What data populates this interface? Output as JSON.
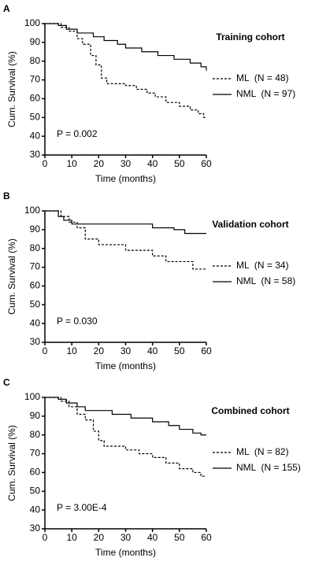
{
  "chart_data": [
    {
      "type": "line",
      "panel": "A",
      "title": "Training cohort",
      "x_label": "Time (months)",
      "y_label": "Cum. Survival (%)",
      "annotation": "P = 0.002",
      "xlim": [
        0,
        60
      ],
      "ylim": [
        30,
        100
      ],
      "xticks": [
        0,
        10,
        20,
        30,
        40,
        50,
        60
      ],
      "yticks": [
        30,
        40,
        50,
        60,
        70,
        80,
        90,
        100
      ],
      "series": [
        {
          "name": "ML  (N = 48)",
          "color": "#000000",
          "line_style": "dashed",
          "x": [
            0,
            6,
            6,
            9,
            9,
            12,
            12,
            14,
            14,
            17,
            17,
            19,
            19,
            21,
            21,
            23,
            23,
            30,
            30,
            34,
            34,
            38,
            38,
            41,
            41,
            45,
            45,
            50,
            50,
            54,
            54,
            57,
            57,
            59,
            59,
            60
          ],
          "values": [
            100,
            100,
            98,
            98,
            96,
            96,
            92,
            92,
            89,
            89,
            83,
            83,
            78,
            78,
            71,
            71,
            68,
            68,
            67,
            67,
            65,
            65,
            63,
            63,
            61,
            61,
            58,
            58,
            56,
            56,
            54,
            54,
            52,
            52,
            50,
            50
          ]
        },
        {
          "name": "NML  (N = 97)",
          "color": "#000000",
          "line_style": "solid",
          "x": [
            0,
            5,
            5,
            8,
            8,
            12,
            12,
            18,
            18,
            22,
            22,
            27,
            27,
            30,
            30,
            36,
            36,
            42,
            42,
            48,
            48,
            54,
            54,
            58,
            58,
            60,
            60
          ],
          "values": [
            100,
            100,
            99,
            99,
            97,
            97,
            95,
            95,
            93,
            93,
            91,
            91,
            89,
            89,
            87,
            87,
            85,
            85,
            83,
            83,
            81,
            81,
            79,
            79,
            77,
            77,
            75
          ]
        }
      ]
    },
    {
      "type": "line",
      "panel": "B",
      "title": "Validation cohort",
      "x_label": "Time (months)",
      "y_label": "Cum. Survival (%)",
      "annotation": "P = 0.030",
      "xlim": [
        0,
        60
      ],
      "ylim": [
        30,
        100
      ],
      "xticks": [
        0,
        10,
        20,
        30,
        40,
        50,
        60
      ],
      "yticks": [
        30,
        40,
        50,
        60,
        70,
        80,
        90,
        100
      ],
      "series": [
        {
          "name": "ML  (N = 34)",
          "color": "#000000",
          "line_style": "dashed",
          "x": [
            0,
            6,
            6,
            9,
            9,
            12,
            12,
            15,
            15,
            20,
            20,
            30,
            30,
            40,
            40,
            45,
            45,
            55,
            55,
            60
          ],
          "values": [
            100,
            100,
            97,
            97,
            94,
            94,
            91,
            91,
            85,
            85,
            82,
            82,
            79,
            79,
            76,
            76,
            73,
            73,
            69,
            69
          ]
        },
        {
          "name": "NML  (N = 58)",
          "color": "#000000",
          "line_style": "solid",
          "x": [
            0,
            5,
            5,
            7,
            7,
            10,
            10,
            40,
            40,
            48,
            48,
            52,
            52,
            60
          ],
          "values": [
            100,
            100,
            97,
            97,
            95,
            95,
            93,
            93,
            91,
            91,
            90,
            90,
            88,
            88
          ]
        }
      ]
    },
    {
      "type": "line",
      "panel": "C",
      "title": "Combined cohort",
      "x_label": "Time (months)",
      "y_label": "Cum. Survival (%)",
      "annotation": "P = 3.00E-4",
      "xlim": [
        0,
        60
      ],
      "ylim": [
        30,
        100
      ],
      "xticks": [
        0,
        10,
        20,
        30,
        40,
        50,
        60
      ],
      "yticks": [
        30,
        40,
        50,
        60,
        70,
        80,
        90,
        100
      ],
      "series": [
        {
          "name": "ML  (N = 82)",
          "color": "#000000",
          "line_style": "dashed",
          "x": [
            0,
            6,
            6,
            9,
            9,
            12,
            12,
            15,
            15,
            18,
            18,
            20,
            20,
            22,
            22,
            30,
            30,
            35,
            35,
            40,
            40,
            45,
            45,
            50,
            50,
            55,
            55,
            58,
            58,
            60
          ],
          "values": [
            100,
            100,
            98,
            98,
            95,
            95,
            91,
            91,
            88,
            88,
            82,
            82,
            77,
            77,
            74,
            74,
            72,
            72,
            70,
            70,
            68,
            68,
            65,
            65,
            62,
            62,
            60,
            60,
            58,
            58
          ]
        },
        {
          "name": "NML  (N = 155)",
          "color": "#000000",
          "line_style": "solid",
          "x": [
            0,
            5,
            5,
            8,
            8,
            12,
            12,
            15,
            15,
            25,
            25,
            32,
            32,
            40,
            40,
            46,
            46,
            50,
            50,
            55,
            55,
            58,
            58,
            60
          ],
          "values": [
            100,
            100,
            99,
            99,
            97,
            97,
            95,
            95,
            93,
            93,
            91,
            91,
            89,
            89,
            87,
            87,
            85,
            85,
            83,
            83,
            81,
            81,
            80,
            80
          ]
        }
      ]
    }
  ]
}
